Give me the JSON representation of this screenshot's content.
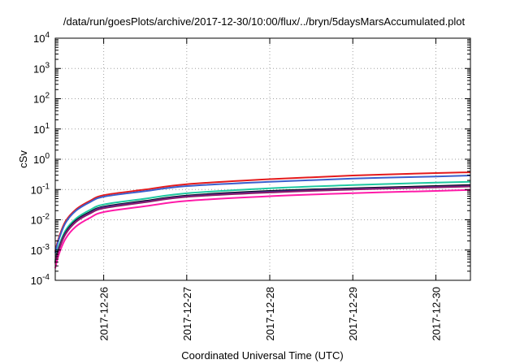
{
  "chart_data": {
    "type": "line",
    "title": "/data/run/goesPlots/archive/2017-12-30/10:00/flux/../bryn/5daysMarsAccumulated.plot",
    "xlabel": "Coordinated Universal Time (UTC)",
    "ylabel": "cSv",
    "y_scale": "log",
    "ylim": [
      0.0001,
      10000
    ],
    "y_ticks": [
      {
        "value": 0.0001,
        "base": "10",
        "exp": "-4"
      },
      {
        "value": 0.001,
        "base": "10",
        "exp": "-3"
      },
      {
        "value": 0.01,
        "base": "10",
        "exp": "-2"
      },
      {
        "value": 0.1,
        "base": "10",
        "exp": "-1"
      },
      {
        "value": 1,
        "base": "10",
        "exp": "0"
      },
      {
        "value": 10,
        "base": "10",
        "exp": "1"
      },
      {
        "value": 100,
        "base": "10",
        "exp": "2"
      },
      {
        "value": 1000,
        "base": "10",
        "exp": "3"
      },
      {
        "value": 10000,
        "base": "10",
        "exp": "4"
      }
    ],
    "xlim": [
      "2017-12-25T10:00",
      "2017-12-30T10:00"
    ],
    "x_ticks": [
      {
        "value": "2017-12-26T00:00",
        "label": "2017-12-26"
      },
      {
        "value": "2017-12-27T00:00",
        "label": "2017-12-27"
      },
      {
        "value": "2017-12-28T00:00",
        "label": "2017-12-28"
      },
      {
        "value": "2017-12-29T00:00",
        "label": "2017-12-29"
      },
      {
        "value": "2017-12-30T00:00",
        "label": "2017-12-30"
      }
    ],
    "grid": true,
    "x_times": [
      "2017-12-25T10:00",
      "2017-12-25T11:00",
      "2017-12-25T13:00",
      "2017-12-25T16:00",
      "2017-12-25T20:00",
      "2017-12-26T00:00",
      "2017-12-26T12:00",
      "2017-12-27T00:00",
      "2017-12-28T00:00",
      "2017-12-29T00:00",
      "2017-12-30T00:00",
      "2017-12-30T10:00"
    ],
    "series": [
      {
        "color": "#e41a1c",
        "values": [
          0.0009,
          0.0025,
          0.009,
          0.022,
          0.042,
          0.065,
          0.1,
          0.15,
          0.22,
          0.29,
          0.35,
          0.37
        ]
      },
      {
        "color": "#3a5fcd",
        "values": [
          0.0008,
          0.0022,
          0.008,
          0.02,
          0.038,
          0.058,
          0.088,
          0.13,
          0.18,
          0.23,
          0.27,
          0.29
        ]
      },
      {
        "color": "#1ec8a0",
        "values": [
          0.00045,
          0.0013,
          0.0045,
          0.011,
          0.021,
          0.032,
          0.05,
          0.075,
          0.11,
          0.14,
          0.17,
          0.18
        ]
      },
      {
        "color": "#000000",
        "values": [
          0.0004,
          0.0011,
          0.0038,
          0.0095,
          0.018,
          0.027,
          0.042,
          0.063,
          0.09,
          0.11,
          0.13,
          0.14
        ]
      },
      {
        "color": "#3b2d8f",
        "values": [
          0.00038,
          0.00105,
          0.0036,
          0.009,
          0.017,
          0.026,
          0.04,
          0.06,
          0.085,
          0.105,
          0.123,
          0.132
        ]
      },
      {
        "color": "#8b1a6b",
        "values": [
          0.00036,
          0.001,
          0.0034,
          0.0085,
          0.016,
          0.024,
          0.038,
          0.057,
          0.08,
          0.1,
          0.118,
          0.126
        ]
      },
      {
        "color": "#ff1aa8",
        "values": [
          0.00025,
          0.0007,
          0.0024,
          0.006,
          0.0115,
          0.018,
          0.028,
          0.042,
          0.06,
          0.076,
          0.09,
          0.097
        ]
      }
    ]
  }
}
